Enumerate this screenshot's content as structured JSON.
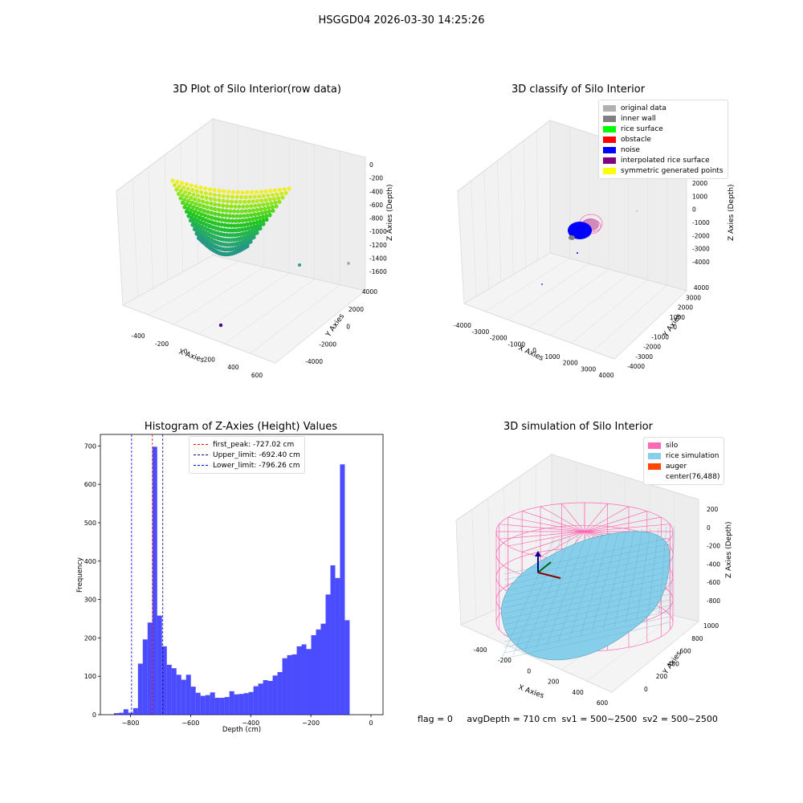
{
  "suptitle": "HSGGD04 2026-03-30 14:25:26",
  "panels": {
    "p1": {
      "title": "3D Plot of Silo Interior(row data)",
      "xlabel": "X Axies",
      "ylabel": "Y Axies",
      "zlabel": "Z Axies (Depth)",
      "xticks": [
        "-400",
        "-200",
        "0",
        "200",
        "400",
        "600"
      ],
      "yticks": [
        "-4000",
        "-2000",
        "0",
        "2000",
        "4000"
      ],
      "zticks": [
        "0",
        "-200",
        "-400",
        "-600",
        "-800",
        "-1000",
        "-1200",
        "-1400",
        "-1600"
      ]
    },
    "p2": {
      "title": "3D classify of Silo Interior",
      "xlabel": "X Axies",
      "ylabel": "Y Axies",
      "zlabel": "Z Axies (Depth)",
      "xticks": [
        "-4000",
        "-3000",
        "-2000",
        "-1000",
        "0",
        "1000",
        "2000",
        "3000",
        "4000"
      ],
      "yticks": [
        "-4000",
        "-3000",
        "-2000",
        "-1000",
        "0",
        "1000",
        "2000",
        "3000",
        "4000"
      ],
      "zticks": [
        "2000",
        "1000",
        "0",
        "-1000",
        "-2000",
        "-3000",
        "-4000"
      ],
      "legend": [
        {
          "label": "original data",
          "color": "#b0b0b0"
        },
        {
          "label": "inner wall",
          "color": "#808080"
        },
        {
          "label": "rice surface",
          "color": "#00ff00"
        },
        {
          "label": "obstacle",
          "color": "#ff0000"
        },
        {
          "label": "noise",
          "color": "#0000ff"
        },
        {
          "label": "interpolated rice surface",
          "color": "#800080"
        },
        {
          "label": "symmetric generated points",
          "color": "#ffff00"
        }
      ]
    },
    "p4": {
      "title": "3D simulation of Silo Interior",
      "xlabel": "X Axies",
      "ylabel": "Y Axies",
      "zlabel": "Z Axies (Depth)",
      "xticks": [
        "-400",
        "-200",
        "0",
        "200",
        "400",
        "600"
      ],
      "yticks": [
        "0",
        "200",
        "400",
        "600",
        "800",
        "1000"
      ],
      "zticks": [
        "200",
        "0",
        "-200",
        "-400",
        "-600",
        "-800"
      ],
      "legend": [
        {
          "label": "silo",
          "color": "#ff69b4"
        },
        {
          "label": "rice simulation",
          "color": "#87ceeb"
        },
        {
          "label": "auger",
          "color": "#ff4500"
        },
        {
          "label": "center(76,488)",
          "color": ""
        }
      ]
    }
  },
  "footer": "flag = 0     avgDepth = 710 cm  sv1 = 500~2500  sv2 = 500~2500",
  "chart_data": [
    {
      "type": "histogram",
      "title": "Histogram of Z-Axies (Height) Values",
      "xlabel": "Depth (cm)",
      "ylabel": "Frequency",
      "xlim": [
        -900,
        40
      ],
      "ylim": [
        0,
        730
      ],
      "xticks": [
        -800,
        -600,
        -400,
        -200,
        0
      ],
      "yticks": [
        0,
        100,
        200,
        300,
        400,
        500,
        600,
        700
      ],
      "bar_color": "#0000ff",
      "bin_width": 16,
      "bins_start": -855,
      "values": [
        4,
        5,
        14,
        5,
        17,
        133,
        196,
        240,
        698,
        258,
        178,
        130,
        121,
        104,
        91,
        104,
        73,
        57,
        49,
        51,
        58,
        44,
        44,
        46,
        61,
        53,
        54,
        56,
        59,
        74,
        81,
        90,
        88,
        102,
        111,
        147,
        155,
        157,
        178,
        183,
        171,
        207,
        222,
        237,
        313,
        389,
        356,
        652,
        246
      ],
      "vlines": [
        {
          "label": "first_peak: -727.02 cm",
          "x": -727.02,
          "color": "#ff0000"
        },
        {
          "label": "Upper_limit: -692.40 cm",
          "x": -692.4,
          "color": "#00008b"
        },
        {
          "label": "Lower_limit: -796.26 cm",
          "x": -796.26,
          "color": "#0000ff"
        }
      ]
    }
  ]
}
